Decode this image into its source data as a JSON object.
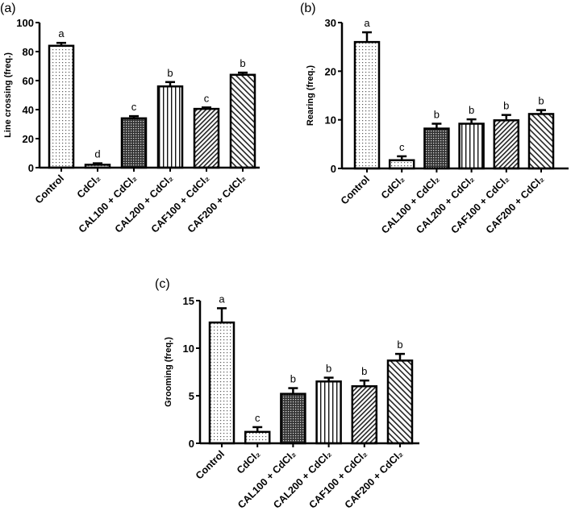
{
  "chart_data": [
    {
      "type": "bar",
      "panel": "(a)",
      "title": "",
      "ylabel": "Line crossing (freq.)",
      "xlabel": "",
      "ylim": [
        0,
        100
      ],
      "yticks": [
        0,
        20,
        40,
        60,
        80,
        100
      ],
      "categories": [
        "Control",
        "CdCl₂",
        "CAL100 + CdCl₂",
        "CAL200 + CdCl₂",
        "CAF100 + CdCl₂",
        "CAF200 + CdCl₂"
      ],
      "values": [
        84,
        2,
        34,
        56,
        40.5,
        64
      ],
      "errors": [
        2,
        1,
        1.5,
        3,
        1,
        1.5
      ],
      "significance": [
        "a",
        "d",
        "c",
        "b",
        "c",
        "b"
      ],
      "patterns": [
        "dots",
        "dots",
        "checker",
        "vertical",
        "diag-up",
        "diag-down"
      ]
    },
    {
      "type": "bar",
      "panel": "(b)",
      "title": "",
      "ylabel": "Rearing (freq.)",
      "xlabel": "",
      "ylim": [
        0,
        30
      ],
      "yticks": [
        0,
        10,
        20,
        30
      ],
      "categories": [
        "Control",
        "CdCl₂",
        "CAL100 + CdCl₂",
        "CAL200 + CdCl₂",
        "CAF100 + CdCl₂",
        "CAF200 + CdCl₂"
      ],
      "values": [
        26,
        1.7,
        8.2,
        9.2,
        9.9,
        11.2
      ],
      "errors": [
        2,
        0.8,
        1,
        0.9,
        1.1,
        0.8
      ],
      "significance": [
        "a",
        "c",
        "b",
        "b",
        "b",
        "b"
      ],
      "patterns": [
        "dots",
        "dots",
        "checker",
        "vertical",
        "diag-up",
        "diag-down"
      ]
    },
    {
      "type": "bar",
      "panel": "(c)",
      "title": "",
      "ylabel": "Grooming (freq.)",
      "xlabel": "",
      "ylim": [
        0,
        15
      ],
      "yticks": [
        0,
        5,
        10,
        15
      ],
      "categories": [
        "Control",
        "CdCl₂",
        "CAL100 + CdCl₂",
        "CAL200 + CdCl₂",
        "CAF100 + CdCl₂",
        "CAF200 + CdCl₂"
      ],
      "values": [
        12.7,
        1.2,
        5.2,
        6.5,
        6.0,
        8.7
      ],
      "errors": [
        1.5,
        0.5,
        0.6,
        0.4,
        0.6,
        0.7
      ],
      "significance": [
        "a",
        "c",
        "b",
        "b",
        "b",
        "b"
      ],
      "patterns": [
        "dots",
        "dots",
        "checker",
        "vertical",
        "diag-up",
        "diag-down"
      ]
    }
  ]
}
